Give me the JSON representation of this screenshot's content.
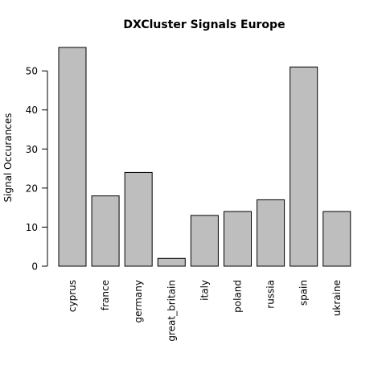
{
  "chart_data": {
    "type": "bar",
    "title": "DXCluster Signals Europe",
    "xlabel": "",
    "ylabel": "Signal Occurances",
    "categories": [
      "cyprus",
      "france",
      "germany",
      "great_britain",
      "italy",
      "poland",
      "russia",
      "spain",
      "ukraine"
    ],
    "values": [
      56,
      18,
      24,
      2,
      13,
      14,
      17,
      51,
      14
    ],
    "ylim": [
      0,
      56
    ],
    "yticks": [
      0,
      10,
      20,
      30,
      40,
      50
    ],
    "bar_color": "#bebebe",
    "grid": false
  }
}
